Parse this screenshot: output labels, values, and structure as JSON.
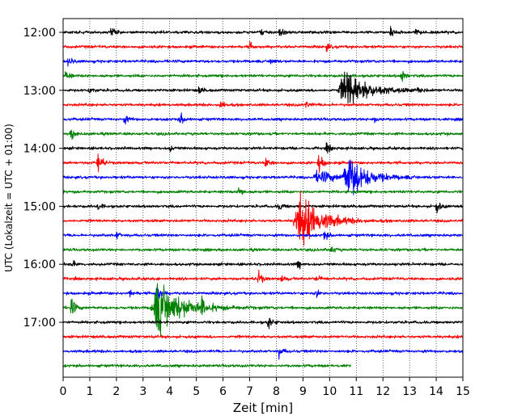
{
  "chart_data": {
    "type": "line",
    "title": "",
    "xlabel": "Zeit  [min]",
    "ylabel": "UTC (Lokalzeit = UTC + 01:00)",
    "xlim": [
      0,
      15
    ],
    "xticks": [
      0,
      1,
      2,
      3,
      4,
      5,
      6,
      7,
      8,
      9,
      10,
      11,
      12,
      13,
      14,
      15
    ],
    "ytick_labels": [
      "12:00",
      "13:00",
      "14:00",
      "15:00",
      "16:00",
      "17:00"
    ],
    "ytick_trace_index": [
      0,
      4,
      8,
      12,
      16,
      20
    ],
    "trace_interval_minutes": 15,
    "grid": {
      "vertical": true,
      "style": "dotted"
    },
    "colors": [
      "#000000",
      "#ff0000",
      "#0000ff",
      "#008000"
    ],
    "series": [
      {
        "start": "12:00",
        "color": "#000000",
        "events": [
          {
            "t": 1.8,
            "amp": 0.35
          },
          {
            "t": 7.4,
            "amp": 0.25
          },
          {
            "t": 8.1,
            "amp": 0.35
          },
          {
            "t": 12.3,
            "amp": 0.45
          },
          {
            "t": 13.2,
            "amp": 0.3
          }
        ]
      },
      {
        "start": "12:15",
        "color": "#ff0000",
        "events": [
          {
            "t": 7.0,
            "amp": 0.3
          },
          {
            "t": 9.9,
            "amp": 0.3
          }
        ]
      },
      {
        "start": "12:30",
        "color": "#0000ff",
        "events": [
          {
            "t": 0.2,
            "amp": 0.4
          },
          {
            "t": 7.8,
            "amp": 0.35
          }
        ]
      },
      {
        "start": "12:45",
        "color": "#008000",
        "events": [
          {
            "t": 0.1,
            "amp": 0.4
          },
          {
            "t": 12.7,
            "amp": 0.6
          }
        ]
      },
      {
        "start": "13:00",
        "color": "#000000",
        "events": [
          {
            "t": 1.0,
            "amp": 0.35
          },
          {
            "t": 5.1,
            "amp": 0.3
          },
          {
            "t": 10.6,
            "amp": 1.8,
            "width": 0.7
          },
          {
            "t": 13.3,
            "amp": 0.35
          }
        ]
      },
      {
        "start": "13:15",
        "color": "#ff0000",
        "events": [
          {
            "t": 5.9,
            "amp": 0.45
          },
          {
            "t": 9.1,
            "amp": 0.3
          }
        ]
      },
      {
        "start": "13:30",
        "color": "#0000ff",
        "events": [
          {
            "t": 2.3,
            "amp": 0.35
          },
          {
            "t": 4.4,
            "amp": 0.5
          },
          {
            "t": 11.7,
            "amp": 0.4
          }
        ]
      },
      {
        "start": "13:45",
        "color": "#008000",
        "events": [
          {
            "t": 0.3,
            "amp": 0.5
          }
        ]
      },
      {
        "start": "14:00",
        "color": "#000000",
        "events": [
          {
            "t": 4.0,
            "amp": 0.3
          },
          {
            "t": 9.9,
            "amp": 0.4
          }
        ]
      },
      {
        "start": "14:15",
        "color": "#ff0000",
        "events": [
          {
            "t": 1.3,
            "amp": 1.0
          },
          {
            "t": 7.6,
            "amp": 0.4
          },
          {
            "t": 9.6,
            "amp": 1.0
          }
        ]
      },
      {
        "start": "14:30",
        "color": "#0000ff",
        "events": [
          {
            "t": 9.6,
            "amp": 0.5,
            "width": 0.6
          },
          {
            "t": 10.7,
            "amp": 1.9,
            "width": 0.6
          }
        ]
      },
      {
        "start": "14:45",
        "color": "#008000",
        "events": [
          {
            "t": 6.6,
            "amp": 0.55
          }
        ]
      },
      {
        "start": "15:00",
        "color": "#000000",
        "events": [
          {
            "t": 1.3,
            "amp": 0.3
          },
          {
            "t": 8.1,
            "amp": 0.4
          },
          {
            "t": 14.0,
            "amp": 0.6
          }
        ]
      },
      {
        "start": "15:15",
        "color": "#ff0000",
        "events": [
          {
            "t": 8.9,
            "amp": 2.2,
            "width": 0.7
          }
        ]
      },
      {
        "start": "15:30",
        "color": "#0000ff",
        "events": [
          {
            "t": 2.0,
            "amp": 0.35
          },
          {
            "t": 9.8,
            "amp": 0.4
          }
        ]
      },
      {
        "start": "15:45",
        "color": "#008000",
        "events": [
          {
            "t": 10.0,
            "amp": 0.4
          }
        ]
      },
      {
        "start": "16:00",
        "color": "#000000",
        "events": [
          {
            "t": 0.3,
            "amp": 0.35
          },
          {
            "t": 8.8,
            "amp": 0.4
          }
        ]
      },
      {
        "start": "16:15",
        "color": "#ff0000",
        "events": [
          {
            "t": 7.3,
            "amp": 0.8
          },
          {
            "t": 8.2,
            "amp": 0.3
          },
          {
            "t": 9.5,
            "amp": 0.3
          }
        ]
      },
      {
        "start": "16:30",
        "color": "#0000ff",
        "events": [
          {
            "t": 2.5,
            "amp": 0.3
          },
          {
            "t": 3.5,
            "amp": 1.0
          },
          {
            "t": 9.5,
            "amp": 0.3
          }
        ]
      },
      {
        "start": "16:45",
        "color": "#008000",
        "events": [
          {
            "t": 0.3,
            "amp": 0.9
          },
          {
            "t": 3.6,
            "amp": 2.2,
            "width": 0.8
          },
          {
            "t": 5.2,
            "amp": 0.9
          }
        ]
      },
      {
        "start": "17:00",
        "color": "#000000",
        "events": [
          {
            "t": 7.7,
            "amp": 0.6
          }
        ]
      },
      {
        "start": "17:15",
        "color": "#ff0000",
        "events": []
      },
      {
        "start": "17:30",
        "color": "#0000ff",
        "events": [
          {
            "t": 8.1,
            "amp": 0.5
          }
        ]
      },
      {
        "start": "17:45",
        "color": "#008000",
        "end": 10.8,
        "events": []
      }
    ]
  }
}
